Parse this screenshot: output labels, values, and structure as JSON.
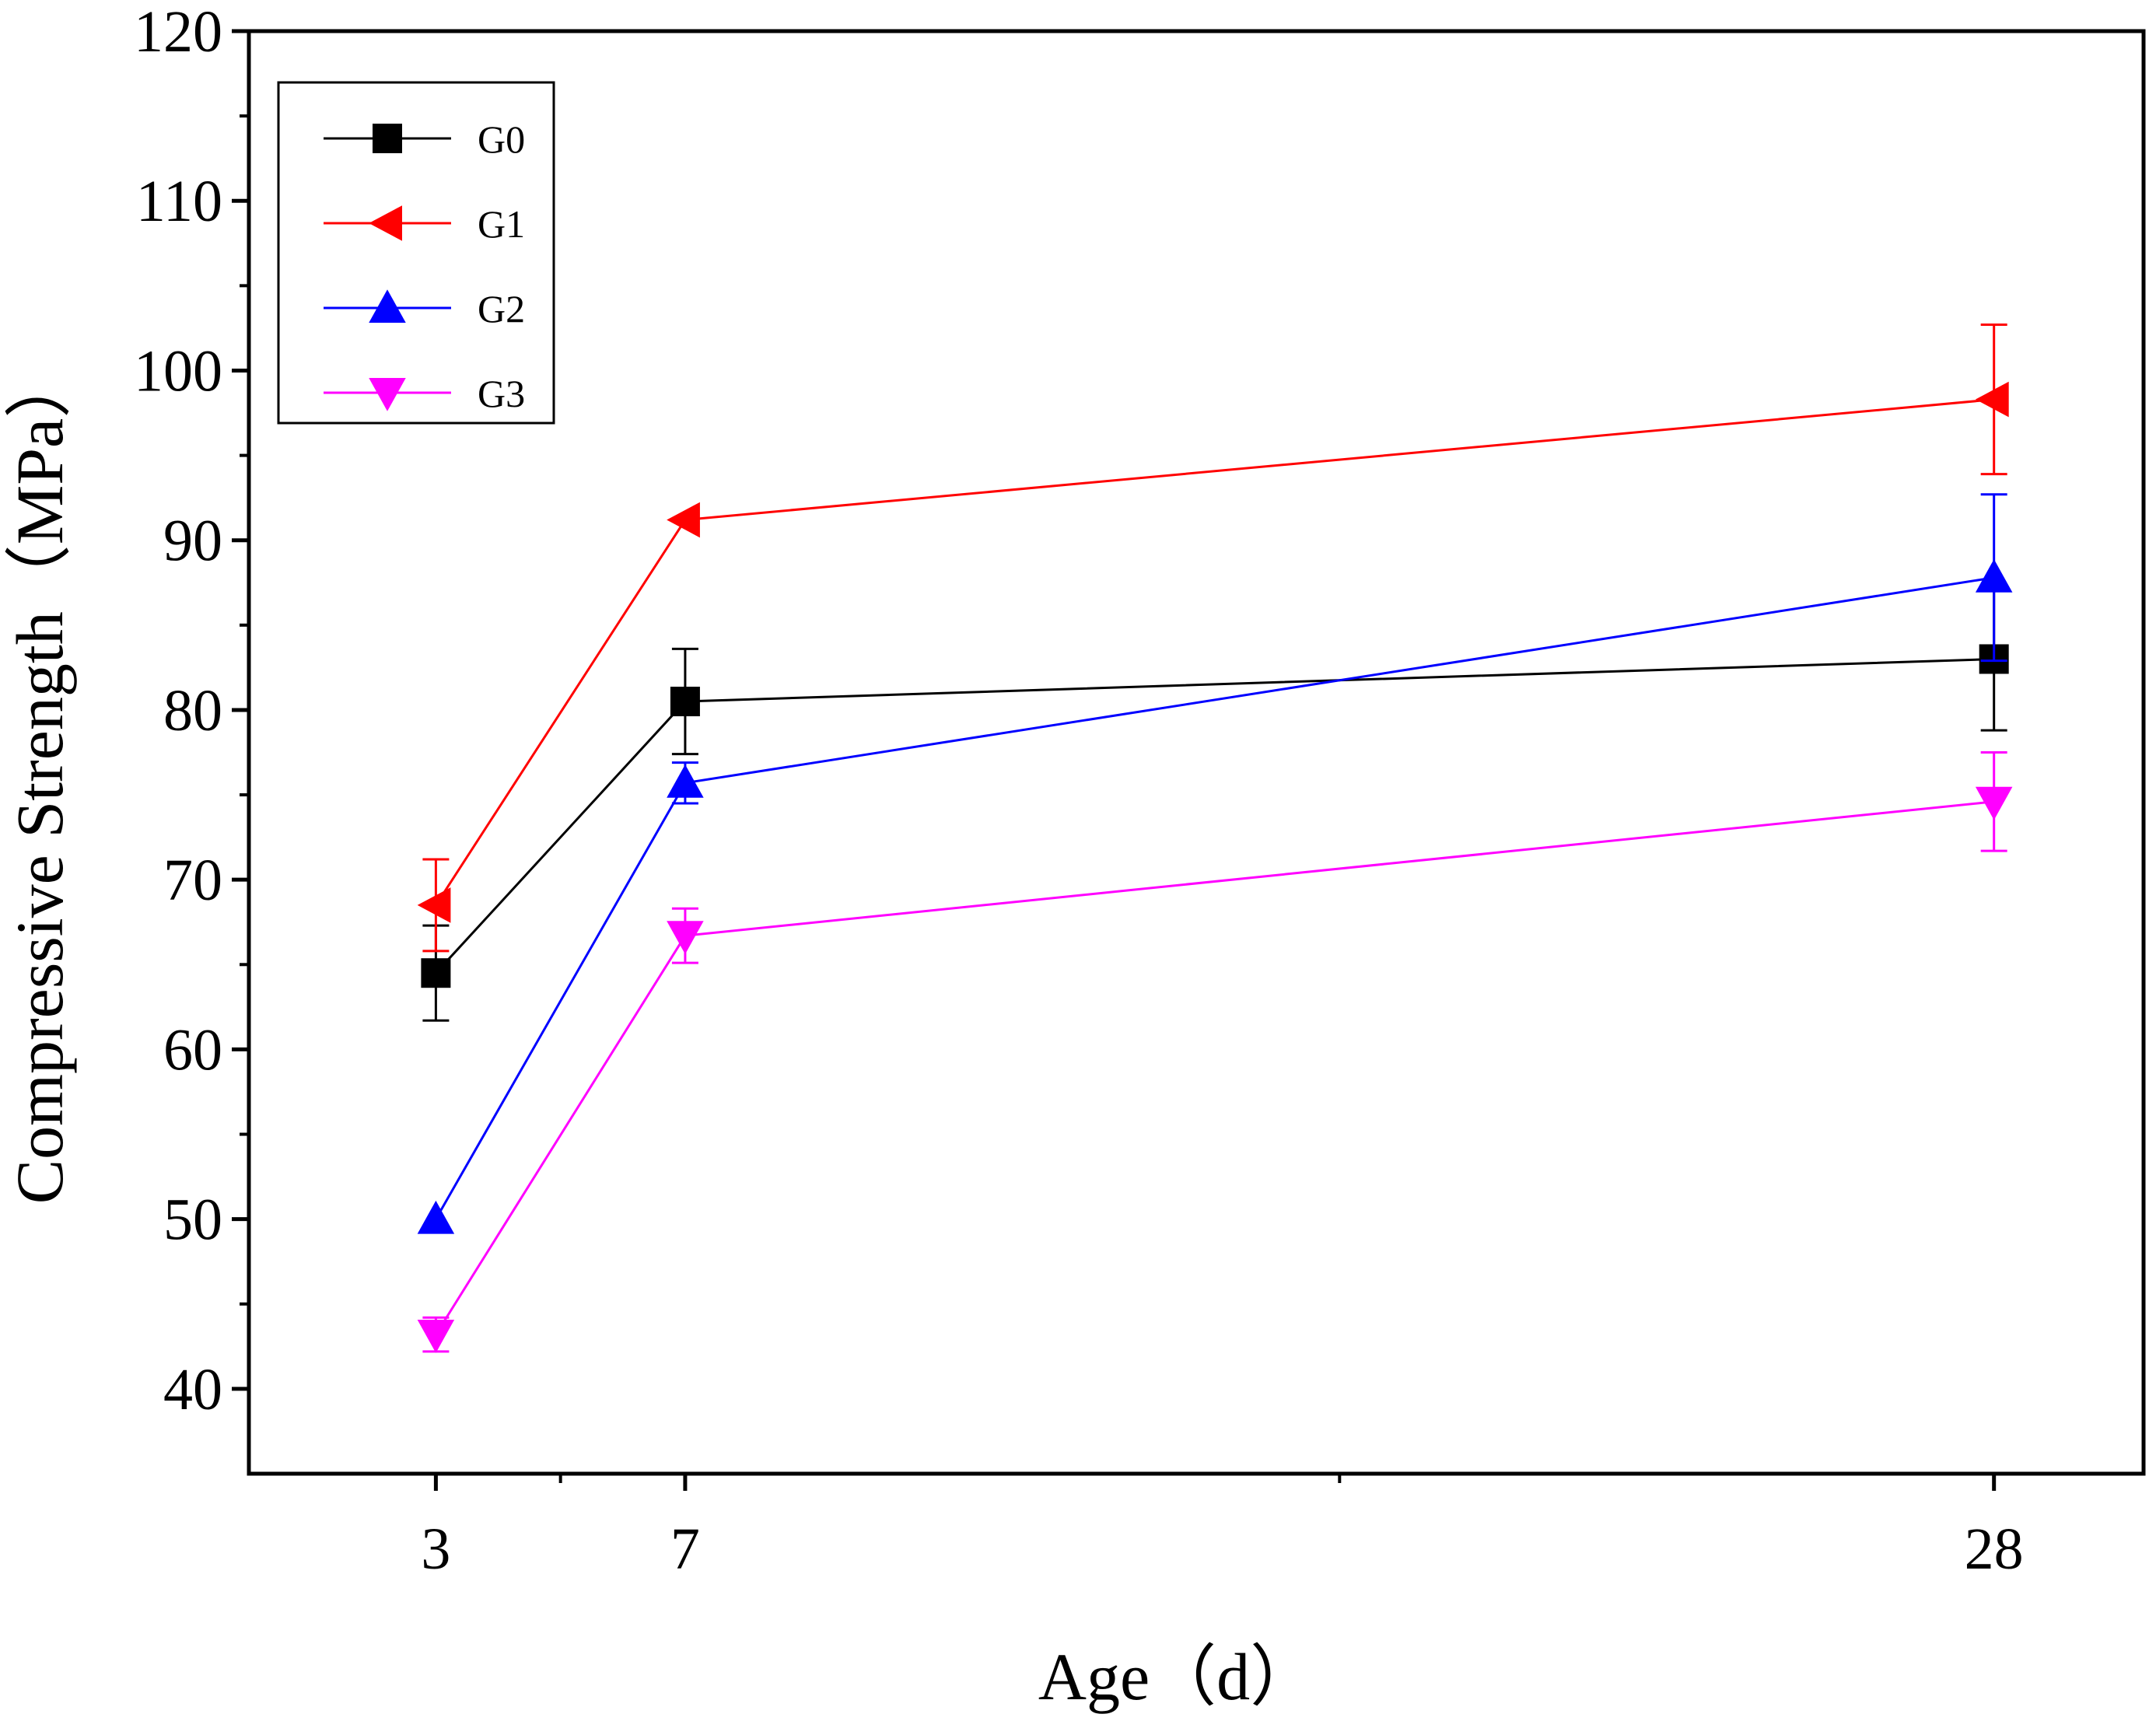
{
  "chart_data": {
    "type": "line",
    "xlabel": "Age（d）",
    "ylabel": "Compressive Strength（MPa）",
    "x": [
      3,
      7,
      28
    ],
    "x_tick_labels": [
      "3",
      "7",
      "28"
    ],
    "xlim": [
      0,
      30.4
    ],
    "ylim": [
      35,
      120
    ],
    "y_ticks": [
      40,
      50,
      60,
      70,
      80,
      90,
      100,
      110,
      120
    ],
    "y_tick_labels": [
      "40",
      "50",
      "60",
      "70",
      "80",
      "90",
      "100",
      "110",
      "120"
    ],
    "legend_position": "top-left",
    "series": [
      {
        "name": "G0",
        "color": "#000000",
        "marker": "square",
        "values": [
          64.5,
          80.5,
          83.0
        ],
        "errors": [
          2.8,
          3.1,
          4.2
        ]
      },
      {
        "name": "G1",
        "color": "#ff0000",
        "marker": "triangle-left",
        "values": [
          68.5,
          91.2,
          98.3
        ],
        "errors": [
          2.7,
          null,
          4.4
        ]
      },
      {
        "name": "G2",
        "color": "#0000ff",
        "marker": "triangle-up",
        "values": [
          50.0,
          75.7,
          87.8
        ],
        "errors": [
          null,
          1.2,
          4.9
        ]
      },
      {
        "name": "G3",
        "color": "#ff00ff",
        "marker": "triangle-down",
        "values": [
          43.2,
          66.7,
          74.6
        ],
        "errors": [
          1.0,
          1.6,
          2.9
        ]
      }
    ]
  }
}
